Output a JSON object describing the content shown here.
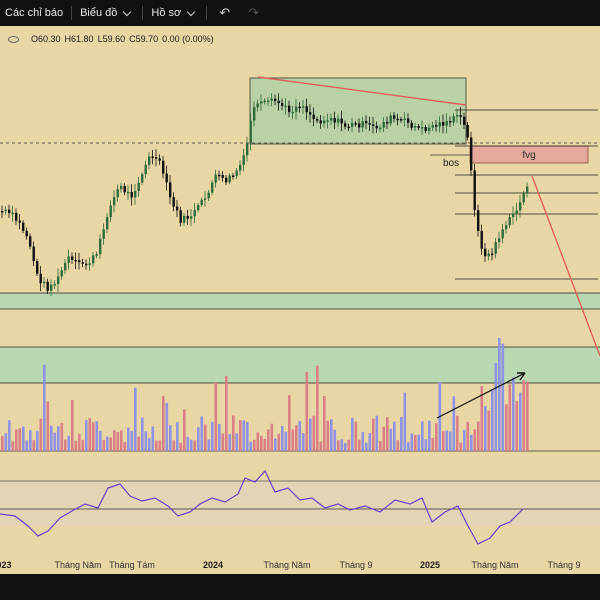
{
  "toolbar": {
    "indicators_label": "Các chỉ báo",
    "chart_label": "Biểu đồ",
    "profile_label": "Hồ sơ",
    "undo_icon": "undo-icon",
    "redo_icon": "redo-icon"
  },
  "ohlc": {
    "open": "O60.30",
    "high": "H61.80",
    "low": "L59.60",
    "close": "C59.70",
    "change": "0.00 (0.00%)"
  },
  "annotations": {
    "fvg": "fvg",
    "bos": "bos"
  },
  "time_axis": [
    {
      "label": "023",
      "bold": true
    },
    {
      "label": "Tháng Năm",
      "bold": false
    },
    {
      "label": "Tháng Tám",
      "bold": false
    },
    {
      "label": "2024",
      "bold": true
    },
    {
      "label": "Tháng Năm",
      "bold": false
    },
    {
      "label": "Tháng 9",
      "bold": false
    },
    {
      "label": "2025",
      "bold": true
    },
    {
      "label": "Tháng Năm",
      "bold": false
    },
    {
      "label": "Tháng 9",
      "bold": false
    }
  ],
  "colors": {
    "background": "#e9d6a5",
    "bull": "#2e6b3a",
    "bear": "#111111",
    "vol_up": "#8e93e3",
    "vol_down": "#d97f86",
    "rsi": "#6a3fd0",
    "trend_red": "#e0605a",
    "zone_green": "#b9d7b0"
  }
}
